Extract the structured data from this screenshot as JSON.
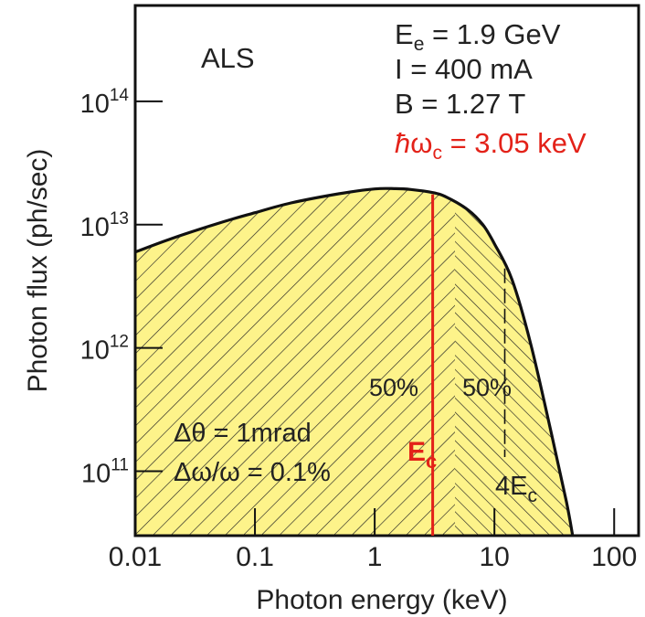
{
  "chart_data": {
    "type": "area",
    "title": "",
    "xlabel": "Photon energy (keV)",
    "ylabel": "Photon flux (ph/sec)",
    "x_scale": "log",
    "y_scale": "log",
    "xlim": [
      0.01,
      160
    ],
    "ylim": [
      30000000000.0,
      600000000000000.0
    ],
    "x_ticks": [
      0.01,
      0.1,
      1,
      10,
      100
    ],
    "x_tick_labels": [
      "0.01",
      "0.1",
      "1",
      "10",
      "100"
    ],
    "y_ticks": [
      100000000000.0,
      1000000000000.0,
      10000000000000.0,
      100000000000000.0
    ],
    "y_tick_labels": [
      {
        "base": "10",
        "exp": "11"
      },
      {
        "base": "10",
        "exp": "12"
      },
      {
        "base": "10",
        "exp": "13"
      },
      {
        "base": "10",
        "exp": "14"
      }
    ],
    "grid": false,
    "series": [
      {
        "fill": "#fdf38a",
        "stroke": "#111111",
        "hatch": true,
        "x": [
          0.01,
          0.02,
          0.05,
          0.1,
          0.2,
          0.5,
          1,
          1.5,
          2,
          3.05,
          4,
          6,
          8,
          10,
          14,
          20,
          30,
          40,
          45
        ],
        "y": [
          6000000000000.0,
          7700000000000.0,
          10300000000000.0,
          12500000000000.0,
          15000000000000.0,
          17800000000000.0,
          19500000000000.0,
          19600000000000.0,
          19300000000000.0,
          18200000000000.0,
          16700000000000.0,
          13200000000000.0,
          10000000000000.0,
          7000000000000.0,
          3600000000000.0,
          1100000000000.0,
          200000000000.0,
          56000000000.0,
          30000000000.0
        ]
      }
    ],
    "critical_energy": {
      "x": 3.05,
      "color": "#e32219",
      "label": {
        "base": "E",
        "sub": "c"
      }
    },
    "four_ec": {
      "x": 12.2,
      "label": {
        "base": "4E",
        "sub": "c"
      }
    },
    "annotations": {
      "machine": "ALS",
      "left_pct": "50%",
      "right_pct": "50%",
      "dtheta": "Δθ = 1mrad",
      "domega": "Δω/ω = 0.1%"
    },
    "parameters": {
      "ee": {
        "base": "E",
        "sub": "e",
        "rest": " = 1.9 GeV"
      },
      "current": "I = 400 mA",
      "field": "B = 1.27 T",
      "critical": {
        "hbar": "ħ",
        "omega": "ω",
        "sub": "c",
        "rest": " = 3.05 keV",
        "color": "#e32219"
      }
    }
  }
}
